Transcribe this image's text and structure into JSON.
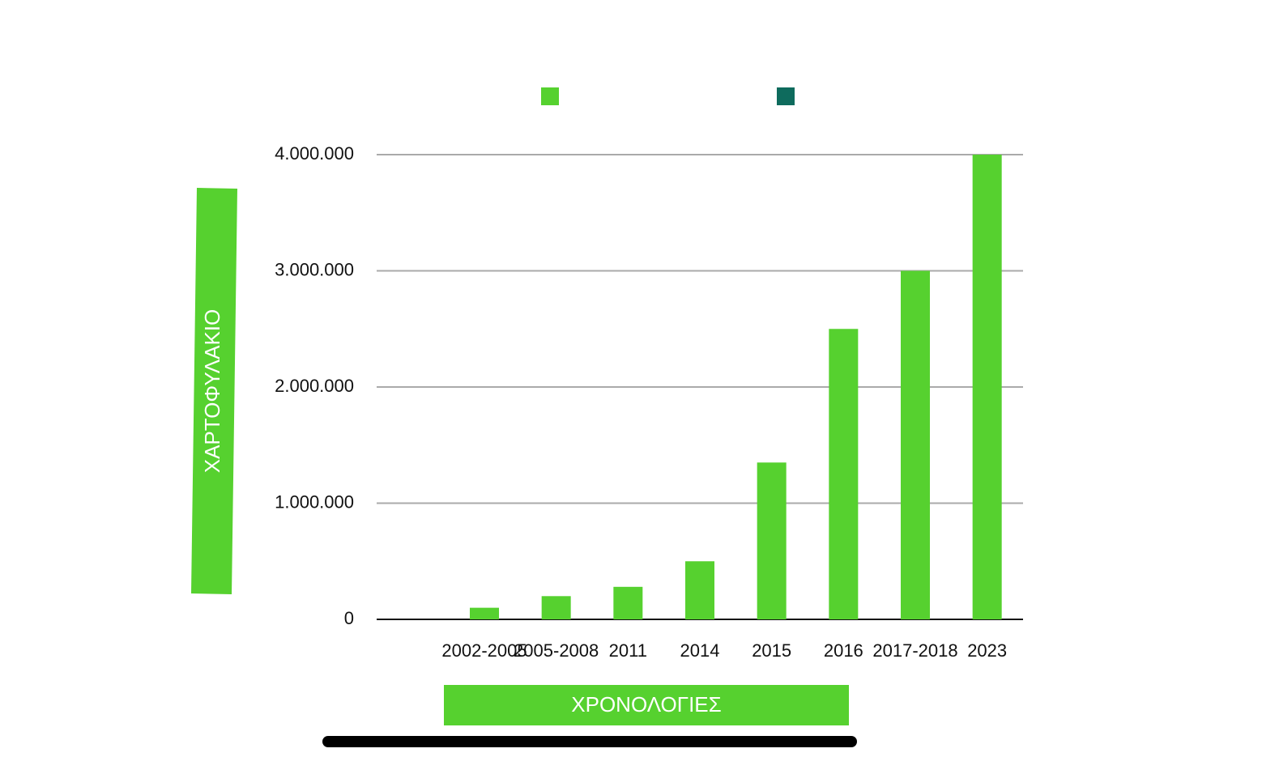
{
  "chart_data": {
    "type": "bar",
    "x_label": "ΧΡΟΝΟΛΟΓΙΕΣ",
    "y_label": "ΧΑΡΤΟΦΥΛΑΚΙΟ",
    "categories": [
      null,
      "2002-2005",
      "2005-2008",
      "2011",
      "2014",
      "2015",
      "2016",
      "2017-2018",
      "2023"
    ],
    "series": [
      {
        "color": "#56d12f",
        "values": [
          null,
          100000,
          200000,
          280000,
          500000,
          1350000,
          2500000,
          3000000,
          4000000
        ]
      },
      {
        "color": "#0e6b5d",
        "values": [
          null,
          null,
          null,
          null,
          null,
          null,
          null,
          null,
          null
        ]
      }
    ],
    "ylim": [
      0,
      4000000
    ],
    "yticks": [
      0,
      {
        "value": 1000000,
        "label": "1.000.000"
      },
      {
        "value": 2000000,
        "label": "2.000.000"
      },
      {
        "value": 3000000,
        "label": "3.000.000"
      },
      {
        "value": 4000000,
        "label": "4.000.000"
      }
    ],
    "grid": true,
    "legend": "top"
  }
}
